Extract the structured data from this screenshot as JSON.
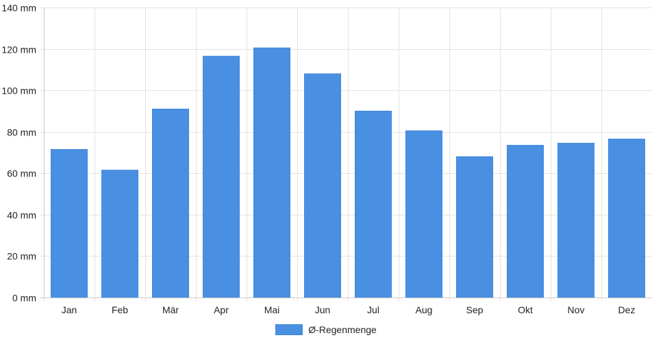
{
  "colors": {
    "bar": "#4a90e2",
    "bar_border": "#3f86d9",
    "grid": "#e3e3e3",
    "axis": "#c8c8c8",
    "text": "#222222"
  },
  "chart_data": {
    "type": "bar",
    "title": "",
    "xlabel": "",
    "ylabel": "",
    "unit": "mm",
    "categories": [
      "Jan",
      "Feb",
      "Mär",
      "Apr",
      "Mai",
      "Jun",
      "Jul",
      "Aug",
      "Sep",
      "Okt",
      "Nov",
      "Dez"
    ],
    "series": [
      {
        "name": "Ø-Regenmenge",
        "values": [
          71.5,
          61.5,
          91,
          116.5,
          120.5,
          108,
          90,
          80.5,
          68,
          73.5,
          74.5,
          76.5
        ]
      }
    ],
    "ylim": [
      0,
      140
    ],
    "yticks": [
      "0 mm",
      "20 mm",
      "40 mm",
      "60 mm",
      "80 mm",
      "100 mm",
      "120 mm",
      "140 mm"
    ],
    "grid": true,
    "legend_position": "bottom-center"
  },
  "legend": {
    "label": "Ø-Regenmenge"
  }
}
